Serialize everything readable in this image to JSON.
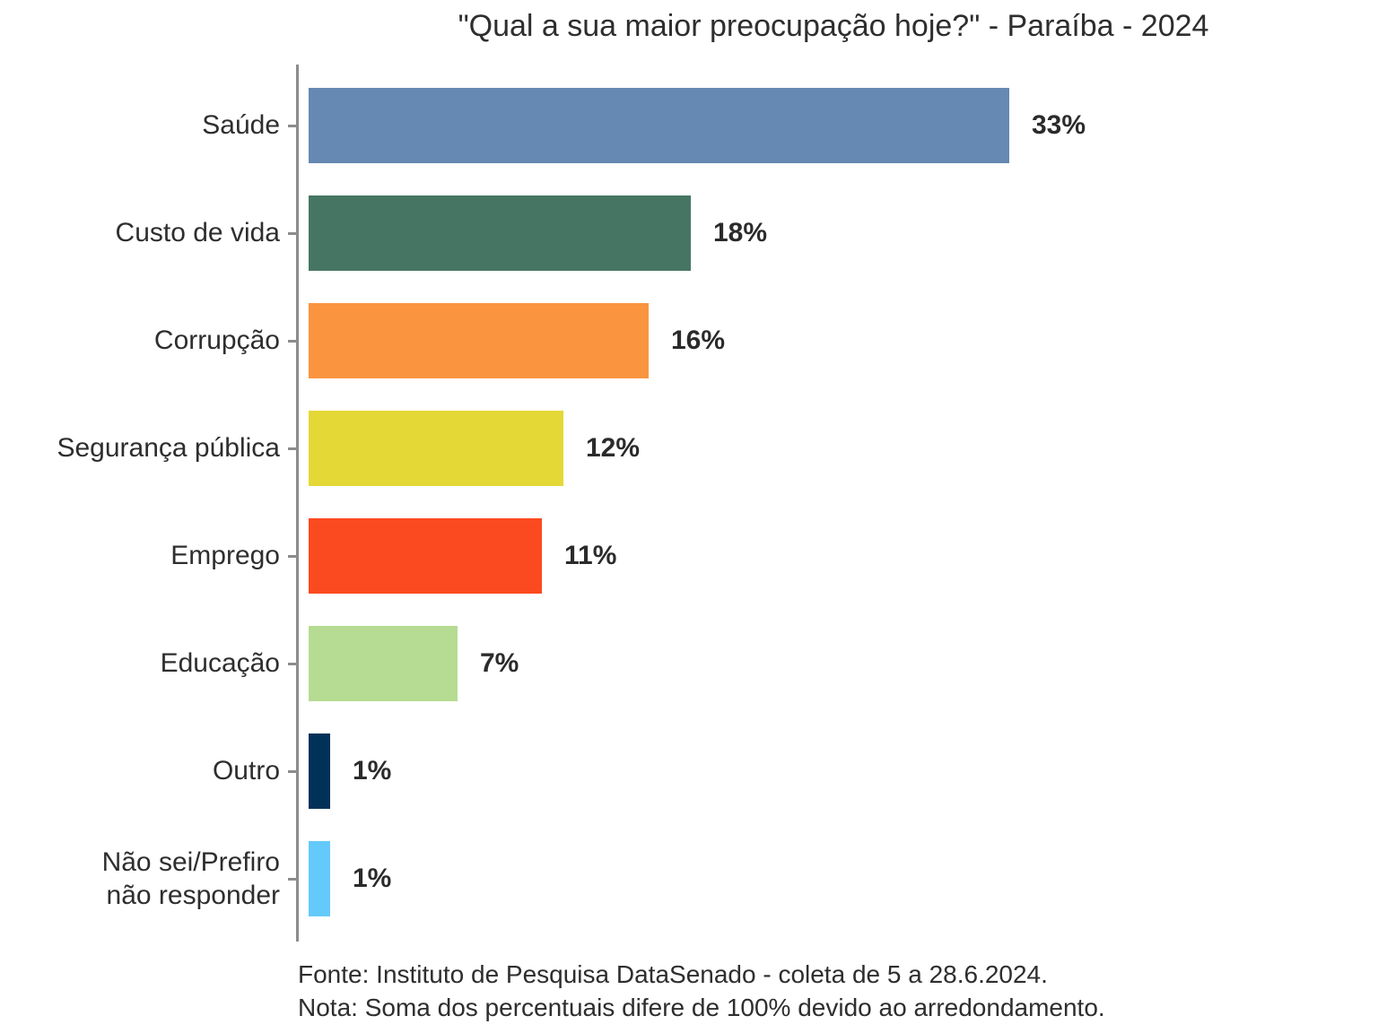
{
  "title": "\"Qual a sua maior preocupação hoje?\" - Paraíba - 2024",
  "chart_data": {
    "type": "bar",
    "orientation": "horizontal",
    "title": "\"Qual a sua maior preocupação hoje?\" - Paraíba - 2024",
    "categories": [
      "Saúde",
      "Custo de vida",
      "Corrupção",
      "Segurança pública",
      "Emprego",
      "Educação",
      "Outro",
      "Não sei/Prefiro\nnão responder"
    ],
    "values": [
      33,
      18,
      16,
      12,
      11,
      7,
      1,
      1
    ],
    "labels": [
      "33%",
      "18%",
      "16%",
      "12%",
      "11%",
      "7%",
      "1%",
      "1%"
    ],
    "colors": [
      "#6589b2",
      "#467663",
      "#fa943e",
      "#e4d836",
      "#fc4a20",
      "#b5dc92",
      "#003158",
      "#64cafc"
    ],
    "xlabel": "",
    "ylabel": "",
    "xlim": [
      0,
      35
    ],
    "grid": false,
    "legend": "none",
    "value_format": "percent",
    "axis_color": "#8c8c8c"
  },
  "footer": {
    "source": "Fonte: Instituto de Pesquisa DataSenado - coleta de 5 a 28.6.2024.",
    "note": "Nota: Soma dos percentuais difere de 100% devido ao arredondamento."
  }
}
